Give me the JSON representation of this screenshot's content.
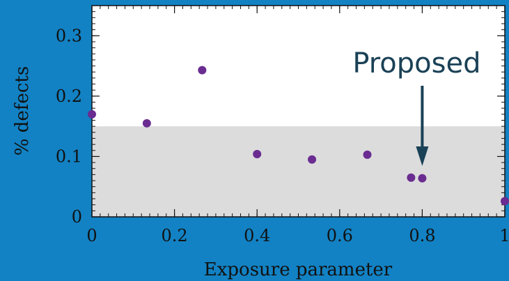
{
  "chart_data": {
    "type": "scatter",
    "title": "",
    "xlabel": "Exposure parameter",
    "ylabel": "% defects",
    "xlim": [
      0,
      1
    ],
    "ylim": [
      0,
      0.35
    ],
    "grid": false,
    "x_ticks": [
      0,
      0.2,
      0.4,
      0.6,
      0.8,
      1
    ],
    "x_tick_labels": [
      "0",
      "0.2",
      "0.4",
      "0.6",
      "0.8",
      "1"
    ],
    "y_ticks": [
      0,
      0.1,
      0.2,
      0.3
    ],
    "y_tick_labels": [
      "0",
      "0.1",
      "0.2",
      "0.3"
    ],
    "shaded_band": {
      "y_from": 0,
      "y_to": 0.15,
      "color": "#dcdcdc"
    },
    "series": [
      {
        "x": [
          0.0,
          0.133,
          0.267,
          0.4,
          0.533,
          0.667,
          0.773,
          0.8,
          1.0
        ],
        "y": [
          0.17,
          0.155,
          0.243,
          0.104,
          0.095,
          0.103,
          0.065,
          0.064,
          0.026
        ],
        "color": "#6a2c91"
      }
    ],
    "annotation": {
      "text": "Proposed",
      "x": 0.8,
      "color": "#1a4156"
    }
  },
  "colors": {
    "background": "#1282c4",
    "plot_background": "#ffffff",
    "axis": "#111111"
  }
}
